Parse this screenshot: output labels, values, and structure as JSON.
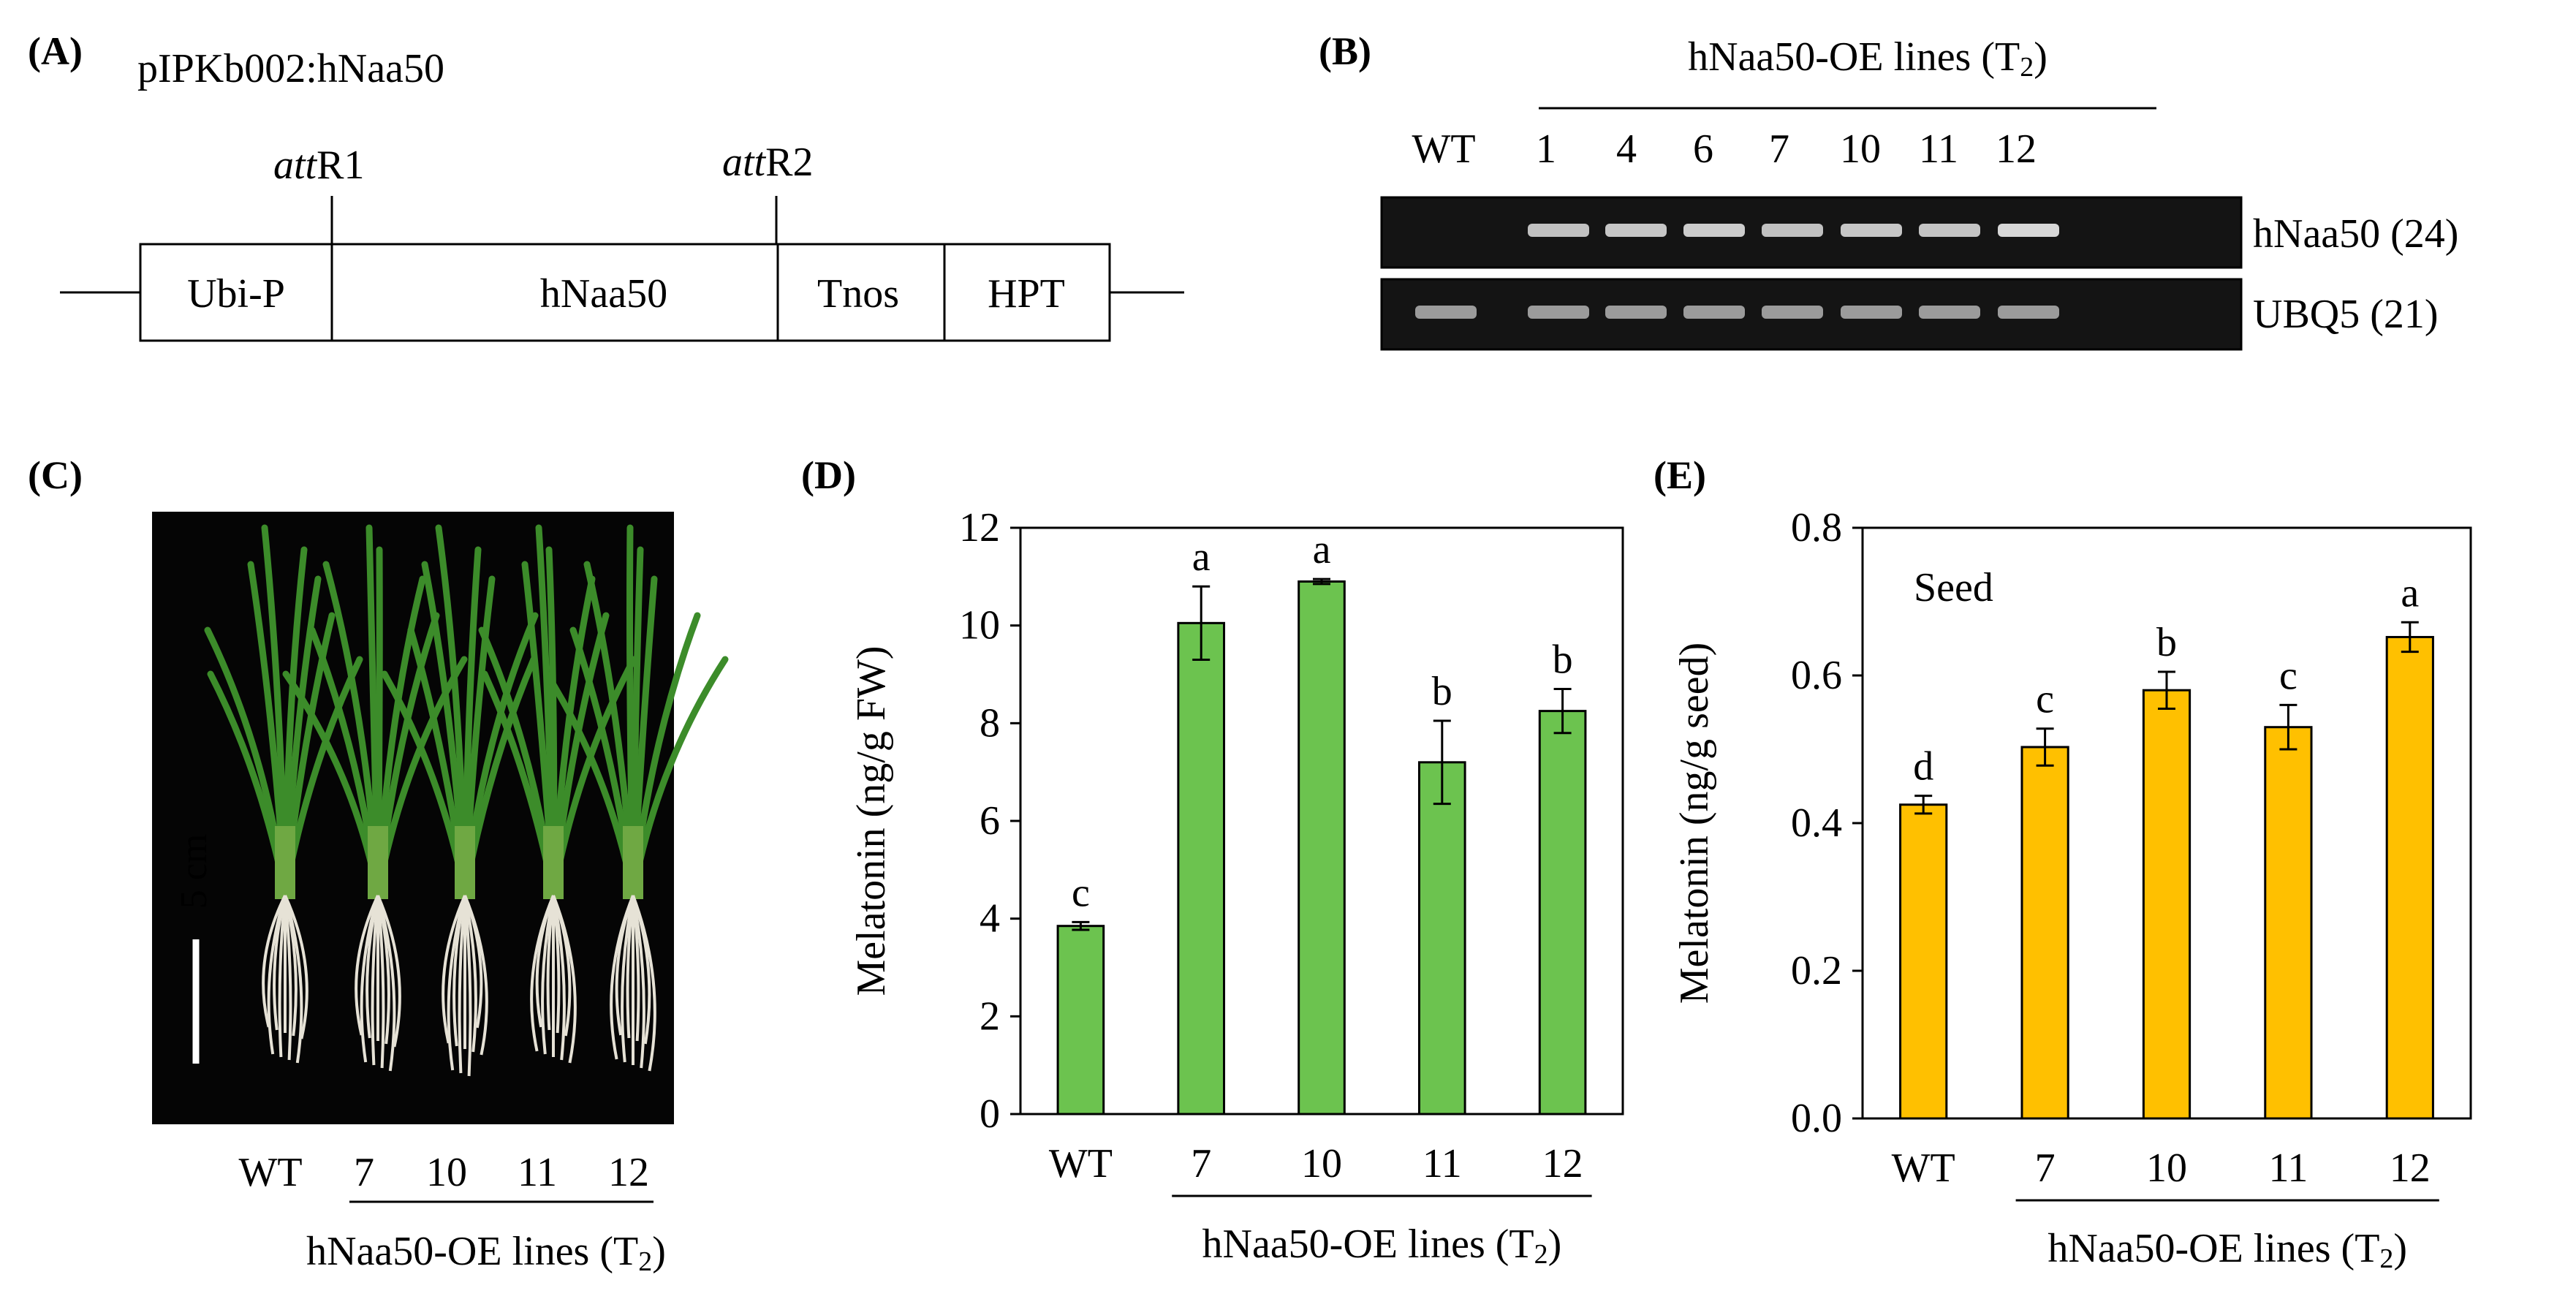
{
  "colors": {
    "green": "#6cc34f",
    "orange": "#ffc000",
    "photo_bg": "#050505",
    "plant_green": "#3c8c2a",
    "root_white": "#e6e2d6",
    "gel_bg": "#141414",
    "gel_band": "#a8a8a8"
  },
  "panel_a": {
    "letter": "(A)",
    "construct_title": "pIPKb002:hNaa50",
    "att_r1": {
      "italic": "att",
      "rest": "R1"
    },
    "att_r2": {
      "italic": "att",
      "rest": "R2"
    },
    "boxes": [
      "Ubi-P",
      "hNaa50",
      "Tnos",
      "HPT"
    ]
  },
  "panel_b": {
    "letter": "(B)",
    "group_label": {
      "main": "hNaa50-OE lines (T",
      "sub": "2",
      "close": ")"
    },
    "lanes": [
      "WT",
      "1",
      "4",
      "6",
      "7",
      "10",
      "11",
      "12"
    ],
    "gel_labels": [
      "hNaa50 (24)",
      "UBQ5 (21)"
    ],
    "band_intensity_top": [
      0,
      0.75,
      0.8,
      0.85,
      0.75,
      0.8,
      0.78,
      0.95
    ],
    "band_intensity_bottom": [
      0.55,
      0.55,
      0.55,
      0.55,
      0.55,
      0.55,
      0.55,
      0.55
    ]
  },
  "panel_c": {
    "letter": "(C)",
    "scale_label": "5 cm",
    "lanes": [
      "WT",
      "7",
      "10",
      "11",
      "12"
    ],
    "group_label": {
      "main": "hNaa50-OE lines (T",
      "sub": "2",
      "close": ")"
    }
  },
  "chart_data": [
    {
      "panel": "(D)",
      "type": "bar",
      "categories": [
        "WT",
        "7",
        "10",
        "11",
        "12"
      ],
      "values": [
        3.85,
        10.05,
        10.9,
        7.2,
        8.25
      ],
      "errors": [
        0.08,
        0.75,
        0.05,
        0.85,
        0.45
      ],
      "sig_letters": [
        "c",
        "a",
        "a",
        "b",
        "b"
      ],
      "ylabel": "Melatonin (ng/g FW)",
      "ylim": [
        0,
        12
      ],
      "yticks": [
        "0",
        "2",
        "4",
        "6",
        "8",
        "10",
        "12"
      ],
      "xgroup_label": {
        "main": "hNaa50-OE lines (T",
        "sub": "2",
        "close": ")"
      },
      "annotation": "",
      "color": "#6cc34f"
    },
    {
      "panel": "(E)",
      "type": "bar",
      "categories": [
        "WT",
        "7",
        "10",
        "11",
        "12"
      ],
      "values": [
        0.425,
        0.503,
        0.58,
        0.53,
        0.652
      ],
      "errors": [
        0.012,
        0.025,
        0.025,
        0.03,
        0.02
      ],
      "sig_letters": [
        "d",
        "c",
        "b",
        "c",
        "a"
      ],
      "ylabel": "Melatonin (ng/g seed)",
      "ylim": [
        0,
        0.8
      ],
      "yticks": [
        "0.0",
        "0.2",
        "0.4",
        "0.6",
        "0.8"
      ],
      "xgroup_label": {
        "main": "hNaa50-OE lines (T",
        "sub": "2",
        "close": ")"
      },
      "annotation": "Seed",
      "color": "#ffc000"
    }
  ]
}
